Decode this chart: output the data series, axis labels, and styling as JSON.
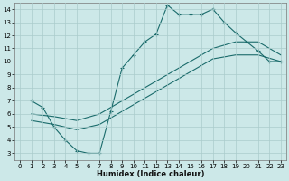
{
  "xlabel": "Humidex (Indice chaleur)",
  "xlim": [
    -0.5,
    23.5
  ],
  "ylim": [
    2.5,
    14.5
  ],
  "xticks": [
    0,
    1,
    2,
    3,
    4,
    5,
    6,
    7,
    8,
    9,
    10,
    11,
    12,
    13,
    14,
    15,
    16,
    17,
    18,
    19,
    20,
    21,
    22,
    23
  ],
  "yticks": [
    3,
    4,
    5,
    6,
    7,
    8,
    9,
    10,
    11,
    12,
    13,
    14
  ],
  "background_color": "#cce8e8",
  "grid_color": "#aacccc",
  "line_color": "#1a6b6b",
  "line1_x": [
    1,
    2,
    3,
    4,
    5,
    6,
    7,
    8,
    9,
    10,
    11,
    12,
    13,
    14,
    15,
    16,
    17,
    18,
    19,
    20,
    21,
    22,
    23
  ],
  "line1_y": [
    7.0,
    6.5,
    5.0,
    4.0,
    3.2,
    3.0,
    3.0,
    6.2,
    9.5,
    10.5,
    11.5,
    12.1,
    14.3,
    13.6,
    13.6,
    13.6,
    14.0,
    13.0,
    12.2,
    11.5,
    10.8,
    10.0,
    10.0
  ],
  "line2_x": [
    1,
    3,
    5,
    7,
    9,
    11,
    13,
    15,
    17,
    19,
    21,
    23
  ],
  "line2_y": [
    6.0,
    5.8,
    5.5,
    6.0,
    7.0,
    8.0,
    9.0,
    10.0,
    11.0,
    11.5,
    11.5,
    10.5
  ],
  "line3_x": [
    1,
    3,
    5,
    7,
    9,
    11,
    13,
    15,
    17,
    19,
    21,
    23
  ],
  "line3_y": [
    5.5,
    5.2,
    4.8,
    5.2,
    6.2,
    7.2,
    8.2,
    9.2,
    10.2,
    10.5,
    10.5,
    10.0
  ]
}
